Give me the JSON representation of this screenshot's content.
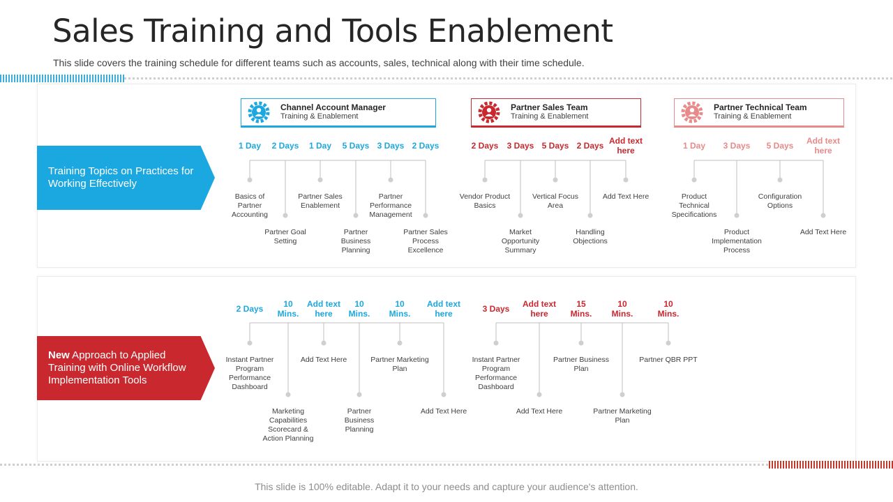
{
  "title": "Sales Training and Tools Enablement",
  "subtitle": "This slide covers the training schedule for different teams such as accounts, sales, technical along with their time schedule.",
  "footer": "This slide is 100% editable. Adapt it to your needs and capture your audience's attention.",
  "colors": {
    "blue": "#1ba8e0",
    "red": "#c8282e",
    "pink": "#e88a8a"
  },
  "rows": [
    {
      "label": "Training Topics on Practices for Working Effectively",
      "label_bold": ""
    },
    {
      "label_bold": "New",
      "label": " Approach to Applied Training with Online Workflow Implementation Tools"
    }
  ],
  "teams": [
    {
      "name": "Channel Account Manager",
      "sub": "Training & Enablement",
      "icon": "gear-user-icon"
    },
    {
      "name": "Partner Sales Team",
      "sub": "Training & Enablement",
      "icon": "gear-user-icon"
    },
    {
      "name": "Partner Technical Team",
      "sub": "Training & Enablement",
      "icon": "gear-user-icon"
    }
  ],
  "groups": [
    {
      "items": [
        {
          "dur": "1 Day",
          "text": "Basics of Partner Accounting"
        },
        {
          "dur": "2 Days",
          "text": "Partner Goal Setting"
        },
        {
          "dur": "1 Day",
          "text": "Partner Sales Enablement"
        },
        {
          "dur": "5 Days",
          "text": "Partner Business Planning"
        },
        {
          "dur": "3 Days",
          "text": "Partner Performance Management"
        },
        {
          "dur": "2 Days",
          "text": "Partner Sales Process Excellence"
        }
      ]
    },
    {
      "items": [
        {
          "dur": "2 Days",
          "text": "Vendor Product Basics"
        },
        {
          "dur": "3 Days",
          "text": "Market Opportunity Summary"
        },
        {
          "dur": "5 Days",
          "text": "Vertical Focus Area"
        },
        {
          "dur": "2 Days",
          "text": "Handling Objections"
        },
        {
          "dur": "Add text here",
          "text": "Add Text Here"
        }
      ]
    },
    {
      "items": [
        {
          "dur": "1 Day",
          "text": "Product Technical Specifications"
        },
        {
          "dur": "3 Days",
          "text": "Product Implementation Process"
        },
        {
          "dur": "5 Days",
          "text": "Configuration Options"
        },
        {
          "dur": "Add text here",
          "text": "Add Text Here"
        }
      ]
    },
    {
      "items": [
        {
          "dur": "2 Days",
          "text": "Instant Partner Program Performance Dashboard"
        },
        {
          "dur": "10 Mins.",
          "text": "Marketing Capabilities Scorecard & Action Planning"
        },
        {
          "dur": "Add text here",
          "text": "Add Text Here"
        },
        {
          "dur": "10 Mins.",
          "text": "Partner Business Planning"
        },
        {
          "dur": "10 Mins.",
          "text": "Partner Marketing Plan"
        },
        {
          "dur": "Add text here",
          "text": "Add Text Here"
        }
      ]
    },
    {
      "items": [
        {
          "dur": "3 Days",
          "text": "Instant Partner Program Performance Dashboard"
        },
        {
          "dur": "Add text here",
          "text": "Add Text Here"
        },
        {
          "dur": "15 Mins.",
          "text": "Partner Business Plan"
        },
        {
          "dur": "10 Mins.",
          "text": "Partner Marketing Plan"
        },
        {
          "dur": "10 Mins.",
          "text": "Partner QBR PPT"
        }
      ]
    }
  ]
}
